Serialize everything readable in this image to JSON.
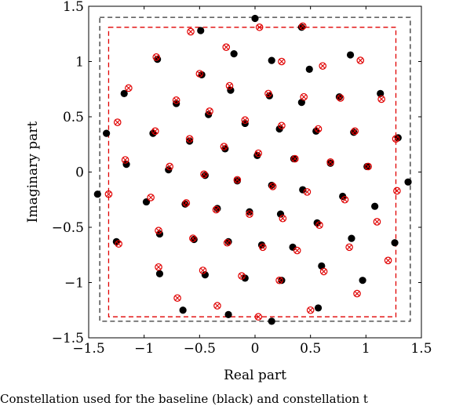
{
  "caption": "Constellation used for the baseline (black) and constellation t",
  "chart_data": {
    "type": "scatter",
    "title": "",
    "xlabel": "Real part",
    "ylabel": "Imaginary part",
    "xlim": [
      -1.5,
      1.5
    ],
    "ylim": [
      -1.5,
      1.5
    ],
    "xticks": [
      -1.5,
      -1,
      -0.5,
      0,
      0.5,
      1,
      1.5
    ],
    "yticks": [
      -1.5,
      -1,
      -0.5,
      0,
      0.5,
      1,
      1.5
    ],
    "xtick_labels": [
      "−1.5",
      "−1",
      "−0.5",
      "0",
      "0.5",
      "1",
      "1.5"
    ],
    "ytick_labels": [
      "−1.5",
      "−1",
      "−0.5",
      "0",
      "0.5",
      "1",
      "1.5"
    ],
    "grid": false,
    "boundaries": [
      {
        "color": "#333333",
        "style": "dashed",
        "xmin": -1.4,
        "xmax": 1.4,
        "ymin": -1.35,
        "ymax": 1.4
      },
      {
        "color": "#e00000",
        "style": "dashed",
        "xmin": -1.32,
        "xmax": 1.27,
        "ymin": -1.31,
        "ymax": 1.31
      }
    ],
    "series": [
      {
        "marker": "filled-circle",
        "color": "#000000",
        "points": [
          [
            0.0,
            1.39
          ],
          [
            -0.49,
            1.28
          ],
          [
            0.42,
            1.31
          ],
          [
            -0.19,
            1.07
          ],
          [
            0.15,
            1.01
          ],
          [
            0.49,
            0.93
          ],
          [
            0.86,
            1.06
          ],
          [
            -0.88,
            1.02
          ],
          [
            -0.48,
            0.88
          ],
          [
            -1.18,
            0.71
          ],
          [
            -0.22,
            0.74
          ],
          [
            0.13,
            0.69
          ],
          [
            0.42,
            0.63
          ],
          [
            0.76,
            0.68
          ],
          [
            1.13,
            0.71
          ],
          [
            -0.71,
            0.62
          ],
          [
            -0.42,
            0.52
          ],
          [
            -0.09,
            0.44
          ],
          [
            0.22,
            0.39
          ],
          [
            0.55,
            0.37
          ],
          [
            0.89,
            0.36
          ],
          [
            -1.34,
            0.35
          ],
          [
            -0.92,
            0.35
          ],
          [
            -0.59,
            0.28
          ],
          [
            -0.27,
            0.21
          ],
          [
            0.02,
            0.15
          ],
          [
            0.35,
            0.12
          ],
          [
            0.68,
            0.08
          ],
          [
            1.01,
            0.05
          ],
          [
            1.29,
            0.31
          ],
          [
            -1.16,
            0.07
          ],
          [
            -0.78,
            0.02
          ],
          [
            -0.45,
            -0.03
          ],
          [
            -0.16,
            -0.08
          ],
          [
            0.15,
            -0.12
          ],
          [
            0.43,
            -0.16
          ],
          [
            0.79,
            -0.22
          ],
          [
            1.38,
            -0.09
          ],
          [
            -1.42,
            -0.2
          ],
          [
            -0.98,
            -0.27
          ],
          [
            -0.63,
            -0.29
          ],
          [
            -0.34,
            -0.33
          ],
          [
            -0.05,
            -0.36
          ],
          [
            0.23,
            -0.38
          ],
          [
            0.56,
            -0.46
          ],
          [
            1.08,
            -0.31
          ],
          [
            -1.25,
            -0.63
          ],
          [
            -0.86,
            -0.56
          ],
          [
            -0.55,
            -0.61
          ],
          [
            -0.24,
            -0.63
          ],
          [
            0.06,
            -0.66
          ],
          [
            0.34,
            -0.68
          ],
          [
            0.87,
            -0.6
          ],
          [
            1.26,
            -0.64
          ],
          [
            -0.86,
            -0.92
          ],
          [
            -0.45,
            -0.93
          ],
          [
            -0.09,
            -0.96
          ],
          [
            0.24,
            -0.98
          ],
          [
            0.6,
            -0.85
          ],
          [
            0.97,
            -0.98
          ],
          [
            -0.65,
            -1.25
          ],
          [
            -0.24,
            -1.29
          ],
          [
            0.15,
            -1.35
          ],
          [
            0.57,
            -1.23
          ]
        ]
      },
      {
        "marker": "circled-x",
        "color": "#e00000",
        "points": [
          [
            0.04,
            1.31
          ],
          [
            -0.58,
            1.27
          ],
          [
            0.43,
            1.32
          ],
          [
            -0.26,
            1.13
          ],
          [
            0.24,
            1.0
          ],
          [
            0.61,
            0.96
          ],
          [
            0.95,
            1.01
          ],
          [
            -0.89,
            1.04
          ],
          [
            -0.5,
            0.89
          ],
          [
            -1.14,
            0.76
          ],
          [
            -0.23,
            0.78
          ],
          [
            0.12,
            0.71
          ],
          [
            0.44,
            0.68
          ],
          [
            0.77,
            0.67
          ],
          [
            1.14,
            0.66
          ],
          [
            -0.71,
            0.65
          ],
          [
            -0.41,
            0.55
          ],
          [
            -0.09,
            0.47
          ],
          [
            0.24,
            0.42
          ],
          [
            0.57,
            0.39
          ],
          [
            0.9,
            0.37
          ],
          [
            -1.24,
            0.45
          ],
          [
            -0.9,
            0.37
          ],
          [
            -0.59,
            0.3
          ],
          [
            -0.28,
            0.23
          ],
          [
            0.03,
            0.17
          ],
          [
            0.36,
            0.12
          ],
          [
            0.68,
            0.09
          ],
          [
            1.02,
            0.05
          ],
          [
            1.27,
            0.3
          ],
          [
            -1.17,
            0.11
          ],
          [
            -0.77,
            0.05
          ],
          [
            -0.46,
            -0.02
          ],
          [
            -0.16,
            -0.07
          ],
          [
            0.16,
            -0.13
          ],
          [
            0.47,
            -0.18
          ],
          [
            0.81,
            -0.25
          ],
          [
            1.28,
            -0.17
          ],
          [
            -1.32,
            -0.2
          ],
          [
            -0.94,
            -0.23
          ],
          [
            -0.62,
            -0.28
          ],
          [
            -0.35,
            -0.34
          ],
          [
            -0.05,
            -0.38
          ],
          [
            0.25,
            -0.42
          ],
          [
            0.58,
            -0.48
          ],
          [
            1.1,
            -0.45
          ],
          [
            -1.23,
            -0.65
          ],
          [
            -0.87,
            -0.53
          ],
          [
            -0.56,
            -0.6
          ],
          [
            -0.25,
            -0.64
          ],
          [
            0.07,
            -0.68
          ],
          [
            0.38,
            -0.71
          ],
          [
            0.85,
            -0.68
          ],
          [
            1.2,
            -0.8
          ],
          [
            -0.87,
            -0.86
          ],
          [
            -0.47,
            -0.89
          ],
          [
            -0.12,
            -0.94
          ],
          [
            0.22,
            -0.98
          ],
          [
            0.62,
            -0.9
          ],
          [
            0.92,
            -1.1
          ],
          [
            -0.7,
            -1.14
          ],
          [
            -0.34,
            -1.21
          ],
          [
            0.03,
            -1.31
          ],
          [
            0.5,
            -1.25
          ]
        ]
      }
    ]
  }
}
